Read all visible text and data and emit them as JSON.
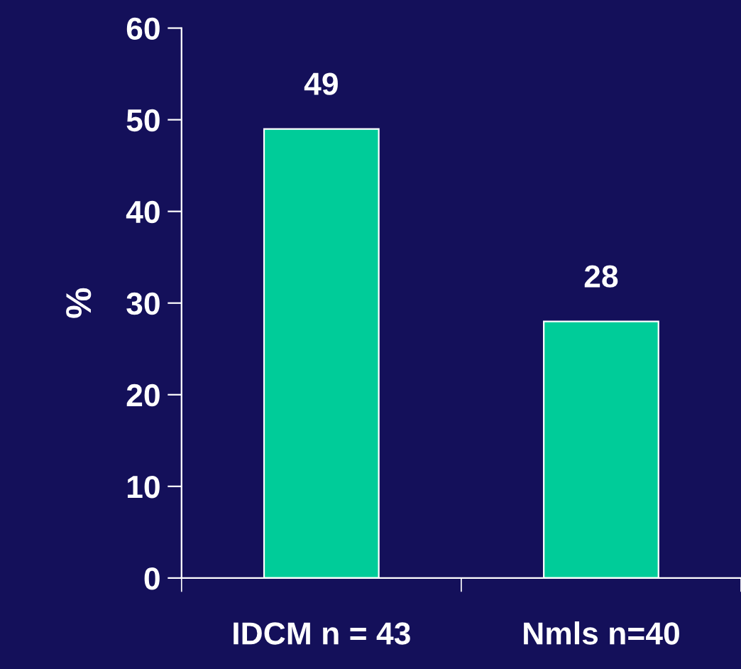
{
  "chart_data": {
    "type": "bar",
    "ylabel": "%",
    "categories": [
      "IDCM n = 43",
      "Nmls n=40"
    ],
    "values": [
      49,
      28
    ],
    "color": "#00cc99",
    "ylim": [
      0,
      60
    ],
    "yticks": [
      0,
      10,
      20,
      30,
      40,
      50,
      60
    ],
    "data_labels": true,
    "grid": false,
    "legend": false
  }
}
